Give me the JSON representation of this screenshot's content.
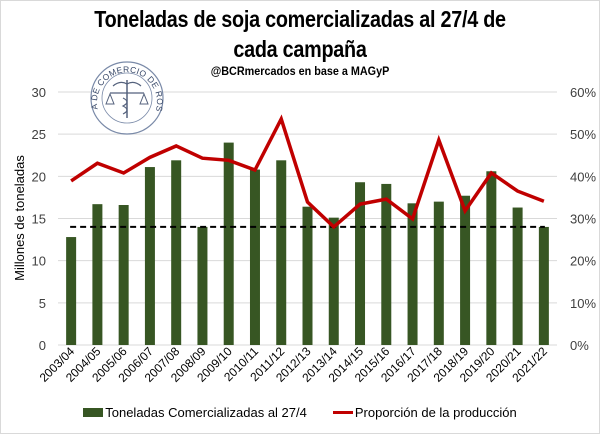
{
  "colors": {
    "bars": "#375623",
    "line": "#c00000",
    "reference": "#000000",
    "grid": "#d9d9d9"
  },
  "logo": {
    "text": "BOLSA DE COMERCIO DE ROSARIO"
  },
  "chart_data": {
    "type": "bar",
    "title": "Toneladas de soja comercializadas al 27/4 de cada campaña",
    "title_line1": "Toneladas de soja comercializadas al 27/4 de",
    "title_line2": "cada campaña",
    "subtitle": "@BCRmercados en base a MAGyP",
    "xlabel": "",
    "ylabel": "Millones de toneladas",
    "ylim": [
      0,
      30
    ],
    "y2lim": [
      0,
      0.6
    ],
    "yticks": [
      "0",
      "5",
      "10",
      "15",
      "20",
      "25",
      "30"
    ],
    "y2ticks": [
      "0%",
      "10%",
      "20%",
      "30%",
      "40%",
      "50%",
      "60%"
    ],
    "grid": true,
    "legend_position": "bottom",
    "categories": [
      "2003/04",
      "2004/05",
      "2005/06",
      "2006/07",
      "2007/08",
      "2008/09",
      "2009/10",
      "2010/11",
      "2011/12",
      "2012/13",
      "2013/14",
      "2014/15",
      "2015/16",
      "2016/17",
      "2017/18",
      "2018/19",
      "2019/20",
      "2020/21",
      "2021/22"
    ],
    "series": [
      {
        "name": "Toneladas Comercializadas al 27/4",
        "type": "bar",
        "axis": "left",
        "values": [
          12.8,
          16.7,
          16.6,
          21.1,
          21.9,
          14.0,
          24.0,
          20.8,
          21.9,
          16.4,
          15.1,
          19.3,
          19.1,
          16.8,
          17.0,
          17.7,
          20.6,
          16.3,
          14.0
        ]
      },
      {
        "name": "Proporción de la producción",
        "type": "line",
        "axis": "right",
        "values": [
          0.389,
          0.431,
          0.408,
          0.445,
          0.472,
          0.443,
          0.438,
          0.415,
          0.536,
          0.339,
          0.28,
          0.334,
          0.346,
          0.299,
          0.486,
          0.318,
          0.408,
          0.365,
          0.341
        ]
      }
    ],
    "reference_line": {
      "value": 14.0,
      "style": "dashed",
      "axis": "left"
    }
  }
}
